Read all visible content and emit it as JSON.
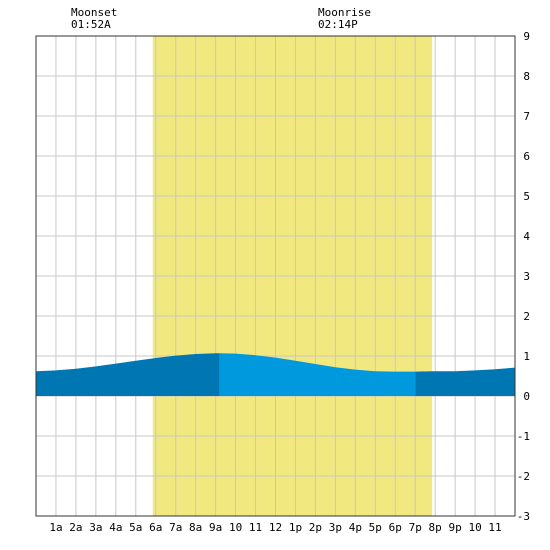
{
  "chart_data": {
    "type": "area",
    "title": "",
    "xlabel": "",
    "ylabel": "",
    "ylim": [
      -3,
      9
    ],
    "y_ticks": [
      "9",
      "8",
      "7",
      "6",
      "5",
      "4",
      "3",
      "2",
      "1",
      "0",
      "-1",
      "-2",
      "-3"
    ],
    "x_ticks": [
      "1a",
      "2a",
      "3a",
      "4a",
      "5a",
      "6a",
      "7a",
      "8a",
      "9a",
      "10",
      "11",
      "12",
      "1p",
      "2p",
      "3p",
      "4p",
      "5p",
      "6p",
      "7p",
      "8p",
      "9p",
      "10",
      "11"
    ],
    "x_range_hours": [
      0,
      24
    ],
    "grid": true,
    "daylight_hours": [
      5.85,
      19.85
    ],
    "tide_series": {
      "x": [
        0,
        1,
        2,
        3,
        4,
        5,
        6,
        7,
        8,
        9,
        9.2,
        10,
        11,
        12,
        13,
        14,
        15,
        16,
        17,
        18,
        19,
        19.9,
        20,
        21,
        22,
        23,
        24
      ],
      "y": [
        0.62,
        0.64,
        0.68,
        0.74,
        0.81,
        0.88,
        0.95,
        1.01,
        1.05,
        1.07,
        1.07,
        1.06,
        1.02,
        0.96,
        0.88,
        0.8,
        0.72,
        0.66,
        0.62,
        0.61,
        0.61,
        0.62,
        0.62,
        0.62,
        0.64,
        0.67,
        0.71
      ]
    },
    "tide_bands": [
      {
        "from": 0,
        "to": 9.2,
        "color": "#0077b3"
      },
      {
        "from": 9.2,
        "to": 19.0,
        "color": "#0099dd"
      },
      {
        "from": 19.0,
        "to": 24,
        "color": "#0077b3"
      }
    ]
  },
  "events": {
    "moonset": {
      "label": "Moonset",
      "time": "01:52A",
      "hour": 1.87
    },
    "moonrise": {
      "label": "Moonrise",
      "time": "02:14P",
      "hour": 14.23
    }
  },
  "colors": {
    "daylight": "#f2e880",
    "grid": "#c8c8c8",
    "frame": "#333333"
  }
}
